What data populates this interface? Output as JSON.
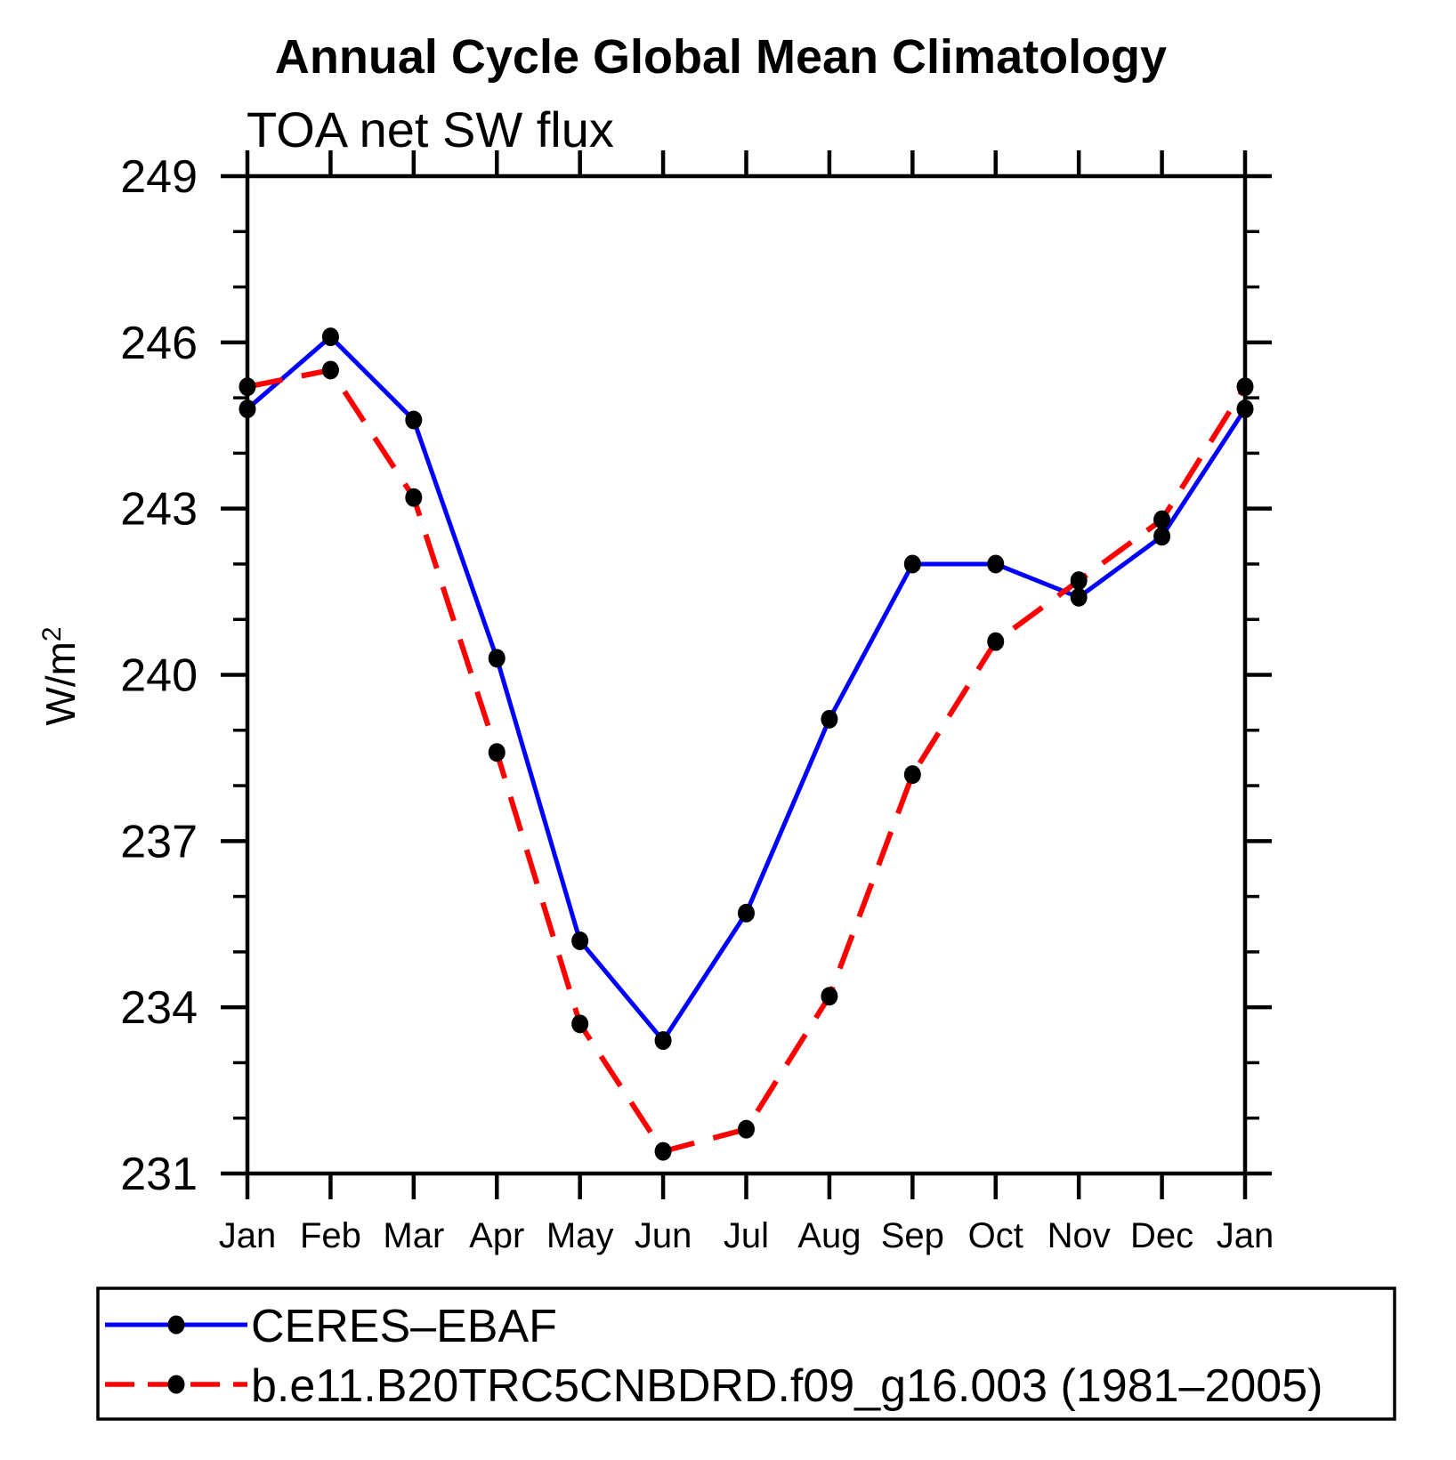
{
  "page": {
    "background": "#ffffff"
  },
  "chart_data": {
    "type": "line",
    "title": "Annual Cycle Global Mean Climatology",
    "subtitle": "TOA net SW flux",
    "ylabel_base": "W/m",
    "ylabel_sup": "2",
    "xlabel": "",
    "categories": [
      "Jan",
      "Feb",
      "Mar",
      "Apr",
      "May",
      "Jun",
      "Jul",
      "Aug",
      "Sep",
      "Oct",
      "Nov",
      "Dec",
      "Jan"
    ],
    "ylim": [
      231,
      249
    ],
    "yticks": [
      249,
      246,
      243,
      240,
      237,
      234,
      231
    ],
    "minor_tick_step": 1,
    "grid": "off",
    "axis_color": "#000000",
    "marker_color": "#000000",
    "legend_position": "bottom-left-box",
    "series": [
      {
        "name": "CERES–EBAF",
        "color": "#0000ff",
        "line_style": "solid",
        "marker": "filled-circle",
        "values": [
          244.8,
          246.1,
          244.6,
          240.3,
          235.2,
          233.4,
          235.7,
          239.2,
          242.0,
          242.0,
          241.4,
          242.5,
          244.8
        ]
      },
      {
        "name": "b.e11.B20TRC5CNBDRD.f09_g16.003 (1981–2005)",
        "color": "#ff0000",
        "line_style": "dashed",
        "marker": "filled-circle",
        "values": [
          245.2,
          245.5,
          243.2,
          238.6,
          233.7,
          231.4,
          231.8,
          234.2,
          238.2,
          240.6,
          241.7,
          242.8,
          245.2
        ]
      }
    ]
  }
}
